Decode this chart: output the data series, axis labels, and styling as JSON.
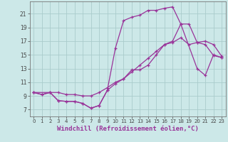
{
  "bg_color": "#cce8e8",
  "grid_color": "#b0d0d0",
  "line_color": "#993399",
  "marker": "+",
  "xlabel": "Windchill (Refroidissement éolien,°C)",
  "xlabel_fontsize": 6.5,
  "xticks": [
    0,
    1,
    2,
    3,
    4,
    5,
    6,
    7,
    8,
    9,
    10,
    11,
    12,
    13,
    14,
    15,
    16,
    17,
    18,
    19,
    20,
    21,
    22,
    23
  ],
  "yticks": [
    7,
    9,
    11,
    13,
    15,
    17,
    19,
    21
  ],
  "xlim": [
    -0.5,
    23.5
  ],
  "ylim": [
    6.0,
    22.8
  ],
  "line1_x": [
    0,
    1,
    2,
    3,
    4,
    5,
    6,
    7,
    8,
    9,
    10,
    11,
    12,
    13,
    14,
    15,
    16,
    17,
    18,
    19,
    20,
    21,
    22,
    23
  ],
  "line1_y": [
    9.5,
    9.2,
    9.5,
    8.3,
    8.2,
    8.2,
    7.9,
    7.2,
    7.6,
    9.8,
    10.8,
    11.5,
    12.8,
    12.8,
    13.5,
    15.0,
    16.5,
    16.8,
    17.5,
    16.5,
    16.8,
    16.5,
    14.9,
    14.6
  ],
  "line2_x": [
    0,
    1,
    2,
    3,
    4,
    5,
    6,
    7,
    8,
    9,
    10,
    11,
    12,
    13,
    14,
    15,
    16,
    17,
    18,
    19,
    20,
    21,
    22,
    23
  ],
  "line2_y": [
    9.5,
    9.2,
    9.5,
    9.5,
    9.2,
    9.2,
    9.0,
    9.0,
    9.5,
    10.2,
    11.0,
    11.5,
    12.5,
    13.5,
    14.5,
    15.5,
    16.5,
    17.0,
    19.5,
    19.5,
    16.8,
    17.0,
    16.5,
    14.8
  ],
  "line3_x": [
    0,
    2,
    3,
    4,
    5,
    6,
    7,
    8,
    9,
    10,
    11,
    12,
    13,
    14,
    15,
    16,
    17,
    18,
    20,
    21,
    22,
    23
  ],
  "line3_y": [
    9.5,
    9.5,
    8.3,
    8.2,
    8.2,
    7.9,
    7.2,
    7.6,
    9.8,
    16.0,
    20.0,
    20.5,
    20.8,
    21.5,
    21.5,
    21.8,
    22.0,
    19.5,
    13.0,
    12.0,
    15.0,
    14.6
  ]
}
